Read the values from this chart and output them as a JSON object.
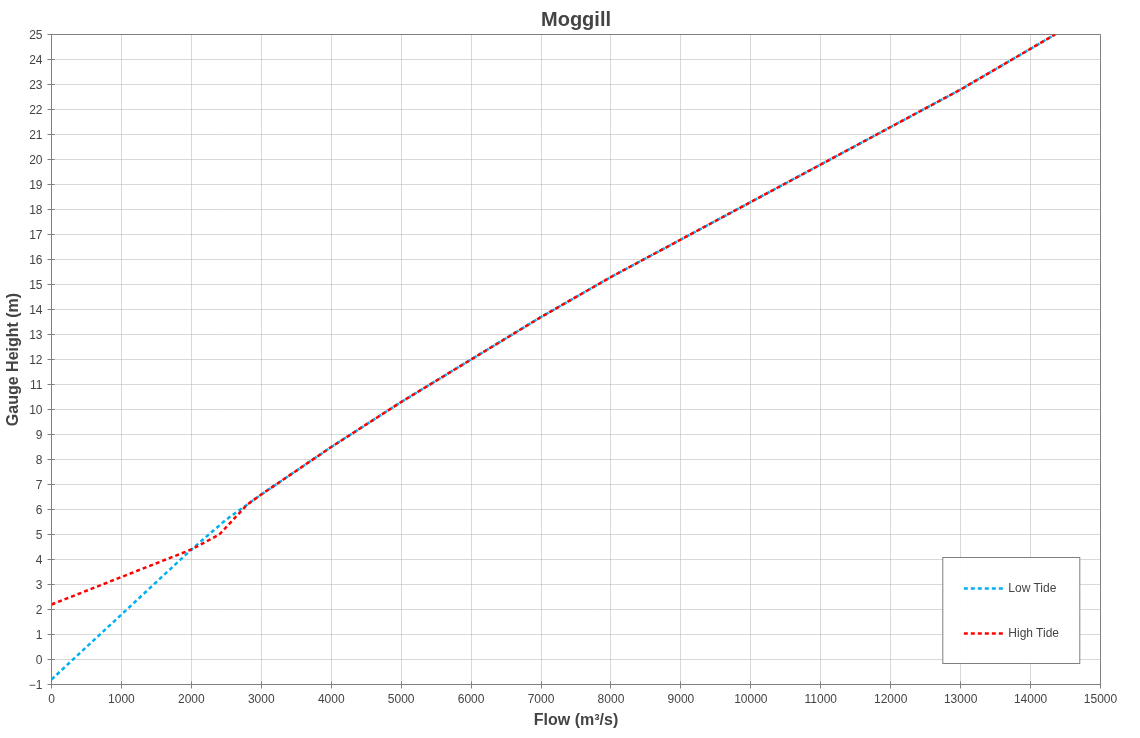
{
  "chart_data": {
    "type": "line",
    "title": "Moggill",
    "xlabel": "Flow (m³/s)",
    "ylabel": "Gauge Height (m)",
    "xlim": [
      0,
      15000
    ],
    "xticks": [
      0,
      1000,
      2000,
      3000,
      4000,
      5000,
      6000,
      7000,
      8000,
      9000,
      10000,
      11000,
      12000,
      13000,
      14000,
      15000
    ],
    "ylim": [
      -1,
      25
    ],
    "yticks": [
      -1,
      0,
      1,
      2,
      3,
      4,
      5,
      6,
      7,
      8,
      9,
      10,
      11,
      12,
      13,
      14,
      15,
      16,
      17,
      18,
      19,
      20,
      21,
      22,
      23,
      24,
      25
    ],
    "grid": true,
    "legend": "bottom right",
    "line_style": "dashed",
    "marker": "none",
    "series": [
      {
        "name": "Low Tide",
        "color": "#00b0f0",
        "x": [
          0,
          1000,
          2000,
          2500,
          3000,
          4000,
          5000,
          6000,
          7000,
          8000,
          9000,
          10000,
          11000,
          12000,
          13000,
          14350
        ],
        "values": [
          -0.8,
          1.8,
          4.4,
          5.6,
          6.6,
          8.5,
          10.3,
          12.0,
          13.7,
          15.3,
          16.8,
          18.3,
          19.8,
          21.3,
          22.8,
          25
        ]
      },
      {
        "name": "High Tide",
        "color": "#ff0000",
        "x": [
          0,
          1000,
          2000,
          2400,
          2800,
          3000,
          4000,
          5000,
          6000,
          7000,
          8000,
          9000,
          10000,
          11000,
          12000,
          13000,
          14350
        ],
        "values": [
          2.2,
          3.3,
          4.4,
          5.0,
          6.2,
          6.6,
          8.5,
          10.3,
          12.0,
          13.7,
          15.3,
          16.8,
          18.3,
          19.8,
          21.3,
          22.8,
          25
        ]
      }
    ]
  }
}
